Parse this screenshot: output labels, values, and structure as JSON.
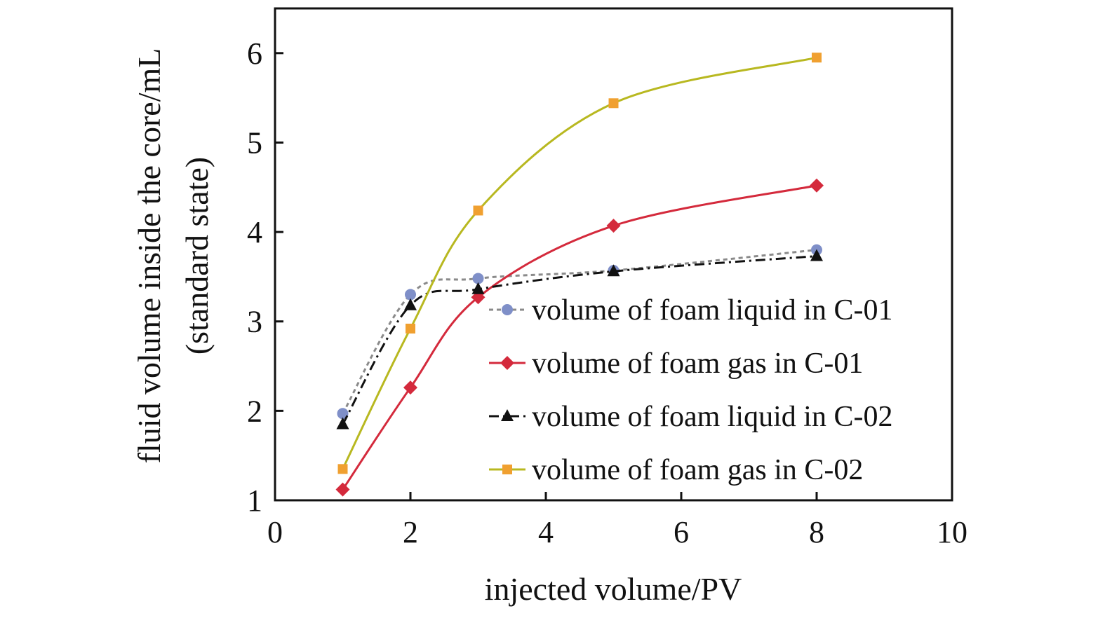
{
  "chart_data": {
    "type": "line",
    "title": "",
    "xlabel": "injected volume/PV",
    "ylabel": [
      "fluid volume inside the core/mL",
      "(standard state)"
    ],
    "xlim": [
      0,
      10
    ],
    "ylim": [
      1,
      6.5
    ],
    "xticks": [
      0,
      2,
      4,
      6,
      8,
      10
    ],
    "yticks": [
      1,
      2,
      3,
      4,
      5,
      6
    ],
    "grid": false,
    "legend_position": "right-middle",
    "series": [
      {
        "name": "volume of foam liquid in C-01",
        "x": [
          1,
          2,
          3,
          5,
          8
        ],
        "y": [
          1.97,
          3.3,
          3.48,
          3.57,
          3.8
        ],
        "color": "#7f8fc8",
        "line_color": "#8a8a8a",
        "marker": "circle",
        "dash": "dashed"
      },
      {
        "name": "volume of foam gas in C-01",
        "x": [
          1,
          2,
          3,
          5,
          8
        ],
        "y": [
          1.12,
          2.26,
          3.27,
          4.07,
          4.52
        ],
        "color": "#d42a3c",
        "line_color": "#d42a3c",
        "marker": "diamond",
        "dash": "solid"
      },
      {
        "name": "volume of foam liquid in C-02",
        "x": [
          1,
          2,
          3,
          5,
          8
        ],
        "y": [
          1.85,
          3.18,
          3.36,
          3.56,
          3.73
        ],
        "color": "#111111",
        "line_color": "#111111",
        "marker": "triangle",
        "dash": "dashdot"
      },
      {
        "name": "volume of foam gas in C-02",
        "x": [
          1,
          2,
          3,
          5,
          8
        ],
        "y": [
          1.35,
          2.92,
          4.24,
          5.44,
          5.95
        ],
        "color": "#f0a030",
        "line_color": "#b8b820",
        "marker": "square",
        "dash": "solid"
      }
    ]
  }
}
